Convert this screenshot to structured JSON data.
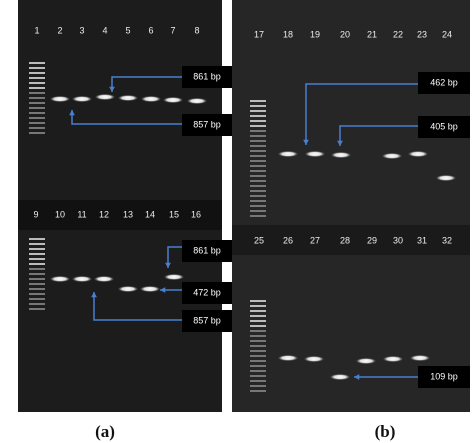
{
  "panels": [
    {
      "label": "(a)",
      "rows": [
        {
          "lanes": [
            "1",
            "2",
            "3",
            "4",
            "5",
            "6",
            "7",
            "8"
          ],
          "annotations": [
            "861 bp",
            "857 bp"
          ]
        },
        {
          "lanes": [
            "9",
            "10",
            "11",
            "12",
            "13",
            "14",
            "15",
            "16"
          ],
          "annotations": [
            "861 bp",
            "472 bp",
            "857 bp"
          ]
        }
      ]
    },
    {
      "label": "(b)",
      "rows": [
        {
          "lanes": [
            "17",
            "18",
            "19",
            "20",
            "21",
            "22",
            "23",
            "24"
          ],
          "annotations": [
            "462 bp",
            "405 bp"
          ]
        },
        {
          "lanes": [
            "25",
            "26",
            "27",
            "28",
            "29",
            "30",
            "31",
            "32"
          ],
          "annotations": [
            "109 bp"
          ]
        }
      ]
    }
  ]
}
